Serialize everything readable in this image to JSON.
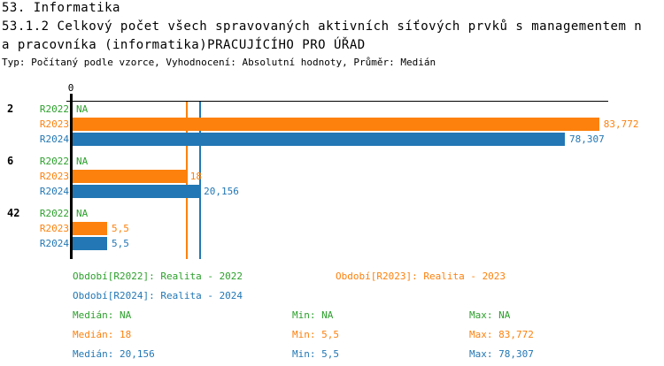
{
  "header": {
    "section": "53. Informatika",
    "title_line1": "53.1.2 Celkový počet všech spravovaných aktivních síťových prvků s managementem n",
    "title_line2": "a pracovníka (informatika)PRACUJÍCÍHO PRO ÚŘAD",
    "meta": "Typ: Počítaný podle vzorce, Vyhodnocení: Absolutní hodnoty, Průměr: Medián"
  },
  "colors": {
    "r2022": "#2ca02c",
    "r2023": "#fd810d",
    "r2024": "#2277b4",
    "axis": "#000000"
  },
  "chart_data": {
    "type": "bar",
    "orientation": "horizontal",
    "title": "53.1.2 Celkový počet všech spravovaných aktivních síťových prvků s managementem na pracovníka (informatika) PRACUJÍCÍHO PRO ÚŘAD",
    "xlabel": "",
    "ylabel": "",
    "x_axis": {
      "zero_label": "0",
      "min": 0,
      "max": 85,
      "gridlines": false
    },
    "series_names": [
      "R2022",
      "R2023",
      "R2024"
    ],
    "groups": [
      {
        "label": "2",
        "bars": [
          {
            "series": "R2022",
            "value": null,
            "display": "NA"
          },
          {
            "series": "R2023",
            "value": 83.772,
            "display": "83,772"
          },
          {
            "series": "R2024",
            "value": 78.307,
            "display": "78,307"
          }
        ]
      },
      {
        "label": "6",
        "bars": [
          {
            "series": "R2022",
            "value": null,
            "display": "NA"
          },
          {
            "series": "R2023",
            "value": 18,
            "display": "18"
          },
          {
            "series": "R2024",
            "value": 20.156,
            "display": "20,156"
          }
        ]
      },
      {
        "label": "42",
        "bars": [
          {
            "series": "R2022",
            "value": null,
            "display": "NA"
          },
          {
            "series": "R2023",
            "value": 5.5,
            "display": "5,5"
          },
          {
            "series": "R2024",
            "value": 5.5,
            "display": "5,5"
          }
        ]
      }
    ],
    "median_lines": [
      {
        "series": "R2023",
        "value": 18
      },
      {
        "series": "R2024",
        "value": 20.156
      }
    ]
  },
  "legend": {
    "periods": [
      {
        "label": "Období[R2022]: Realita - 2022"
      },
      {
        "label": "Období[R2023]: Realita - 2023"
      },
      {
        "label": "Období[R2024]: Realita - 2024"
      }
    ],
    "stats": [
      {
        "median": "Medián: NA",
        "min": "Min: NA",
        "max": "Max: NA"
      },
      {
        "median": "Medián: 18",
        "min": "Min: 5,5",
        "max": "Max: 83,772"
      },
      {
        "median": "Medián: 20,156",
        "min": "Min: 5,5",
        "max": "Max: 78,307"
      }
    ]
  }
}
